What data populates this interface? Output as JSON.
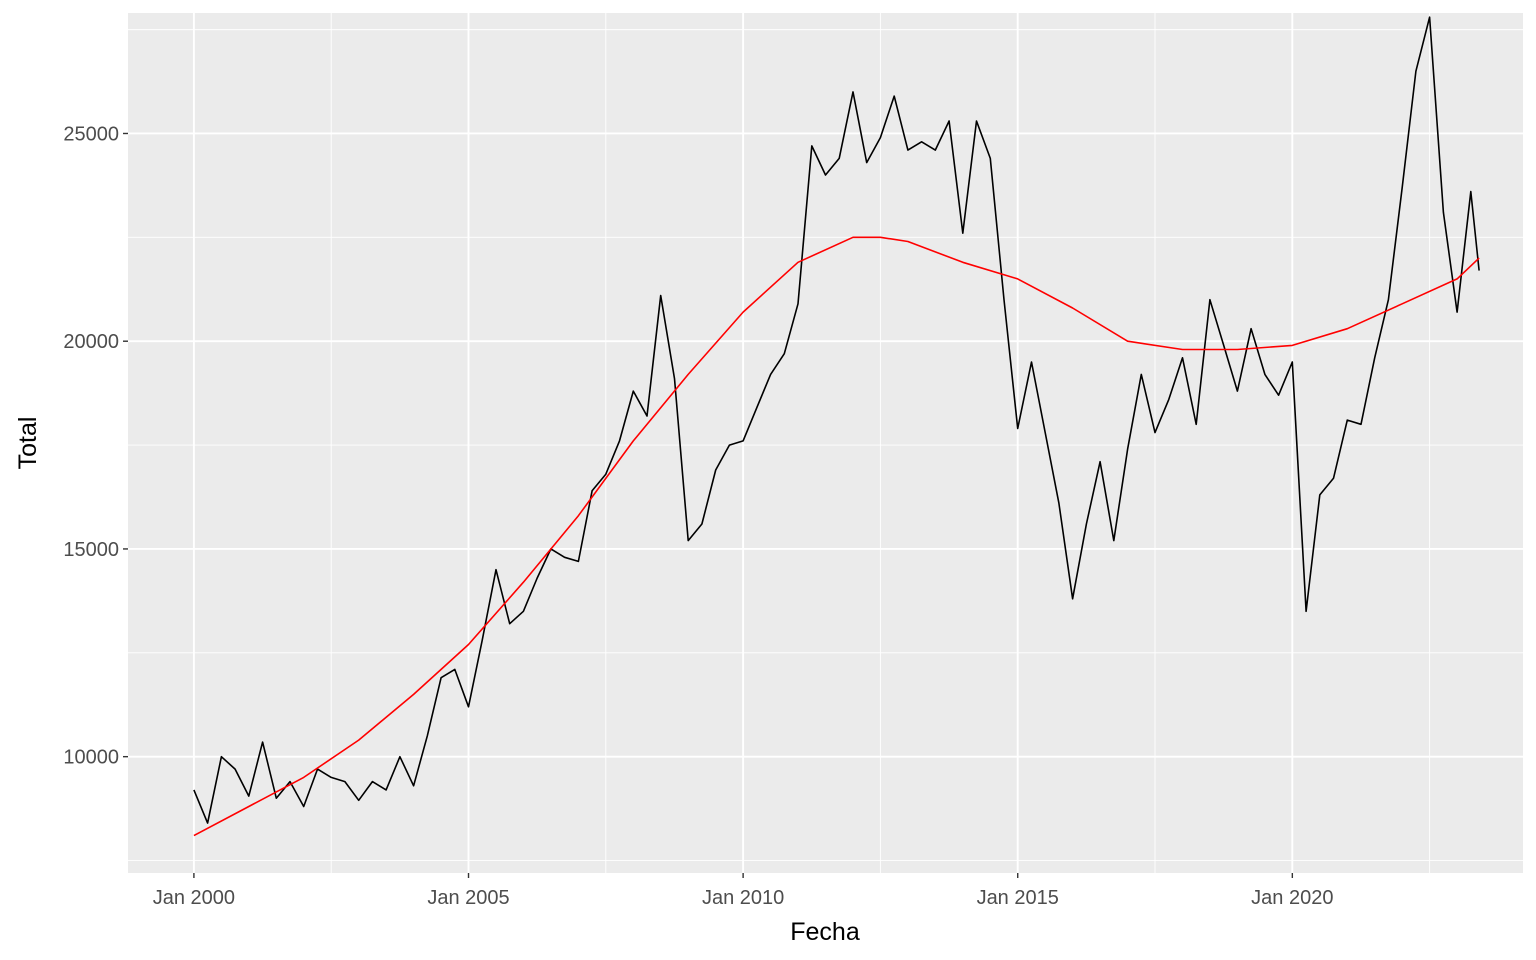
{
  "chart_data": {
    "type": "line",
    "title": "",
    "xlabel": "Fecha",
    "ylabel": "Total",
    "x_ticks": [
      {
        "label": "Jan 2000",
        "value": 2000.0
      },
      {
        "label": "Jan 2005",
        "value": 2005.0
      },
      {
        "label": "Jan 2010",
        "value": 2010.0
      },
      {
        "label": "Jan 2015",
        "value": 2015.0
      },
      {
        "label": "Jan 2020",
        "value": 2020.0
      }
    ],
    "y_ticks": [
      10000,
      15000,
      20000,
      25000
    ],
    "xlim": [
      1998.8,
      2024.2
    ],
    "ylim": [
      7200,
      27900
    ],
    "grid": true,
    "legend": "none",
    "colors": {
      "panel": "#ebebeb",
      "grid": "#ffffff",
      "axis_text": "#4d4d4d",
      "series_total": "#000000",
      "series_smooth": "#ff0000"
    },
    "series": [
      {
        "key": "total",
        "x": [
          2000.0,
          2000.25,
          2000.5,
          2000.75,
          2001.0,
          2001.25,
          2001.5,
          2001.75,
          2002.0,
          2002.25,
          2002.5,
          2002.75,
          2003.0,
          2003.25,
          2003.5,
          2003.75,
          2004.0,
          2004.25,
          2004.5,
          2004.75,
          2005.0,
          2005.25,
          2005.5,
          2005.75,
          2006.0,
          2006.25,
          2006.5,
          2006.75,
          2007.0,
          2007.25,
          2007.5,
          2007.75,
          2008.0,
          2008.25,
          2008.5,
          2008.75,
          2009.0,
          2009.25,
          2009.5,
          2009.75,
          2010.0,
          2010.25,
          2010.5,
          2010.75,
          2011.0,
          2011.25,
          2011.5,
          2011.75,
          2012.0,
          2012.25,
          2012.5,
          2012.75,
          2013.0,
          2013.25,
          2013.5,
          2013.75,
          2014.0,
          2014.25,
          2014.5,
          2014.75,
          2015.0,
          2015.25,
          2015.5,
          2015.75,
          2016.0,
          2016.25,
          2016.5,
          2016.75,
          2017.0,
          2017.25,
          2017.5,
          2017.75,
          2018.0,
          2018.25,
          2018.5,
          2018.75,
          2019.0,
          2019.25,
          2019.5,
          2019.75,
          2020.0,
          2020.25,
          2020.5,
          2020.75,
          2021.0,
          2021.25,
          2021.5,
          2021.75,
          2022.0,
          2022.25,
          2022.5,
          2022.75,
          2023.0,
          2023.25,
          2023.4
        ],
        "values": [
          9200,
          8400,
          10000,
          9700,
          9050,
          10350,
          9000,
          9400,
          8800,
          9700,
          9500,
          9400,
          8950,
          9400,
          9200,
          10000,
          9300,
          10500,
          11900,
          12100,
          11200,
          12800,
          14500,
          13200,
          13500,
          14300,
          15000,
          14800,
          14700,
          16400,
          16800,
          17600,
          18800,
          18200,
          21100,
          19100,
          15200,
          15600,
          16900,
          17500,
          17600,
          18400,
          19200,
          19700,
          20900,
          24700,
          24000,
          24400,
          26000,
          24300,
          24900,
          25900,
          24600,
          24800,
          24600,
          25300,
          22600,
          25300,
          24400,
          21000,
          17900,
          19500,
          17800,
          16100,
          13800,
          15600,
          17100,
          15200,
          17400,
          19200,
          17800,
          18600,
          19600,
          18000,
          21000,
          19900,
          18800,
          20300,
          19200,
          18700,
          19500,
          13500,
          16300,
          16700,
          18100,
          18000,
          19600,
          21000,
          23700,
          26500,
          27800,
          23100,
          20700,
          23600,
          21700
        ]
      },
      {
        "key": "smooth",
        "x": [
          2000.0,
          2001.0,
          2002.0,
          2003.0,
          2004.0,
          2005.0,
          2006.0,
          2007.0,
          2008.0,
          2009.0,
          2010.0,
          2011.0,
          2012.0,
          2012.5,
          2013.0,
          2014.0,
          2015.0,
          2016.0,
          2017.0,
          2018.0,
          2019.0,
          2020.0,
          2021.0,
          2022.0,
          2023.0,
          2023.4
        ],
        "values": [
          8100,
          8800,
          9500,
          10400,
          11500,
          12700,
          14200,
          15800,
          17600,
          19200,
          20700,
          21900,
          22500,
          22500,
          22400,
          21900,
          21500,
          20800,
          20000,
          19800,
          19800,
          19900,
          20300,
          20900,
          21500,
          22000
        ]
      }
    ]
  }
}
